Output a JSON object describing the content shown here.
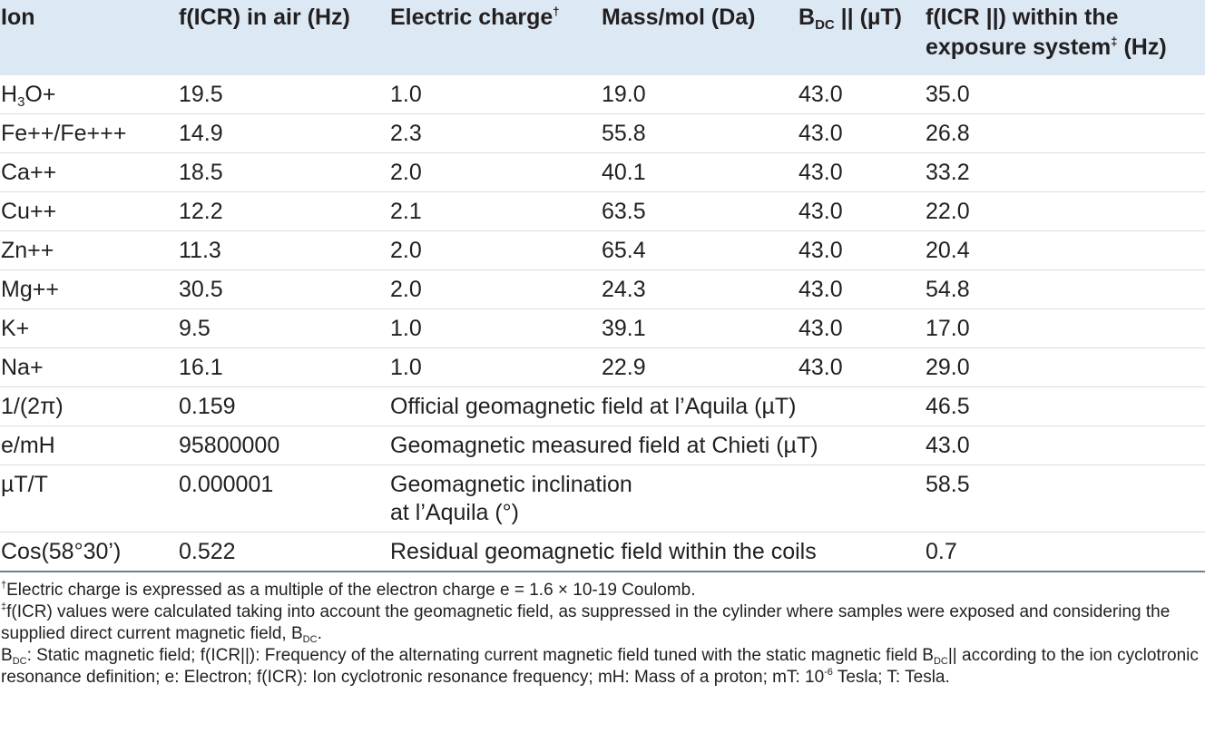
{
  "table": {
    "headers": [
      {
        "key": "ion",
        "text": "Ion"
      },
      {
        "key": "ficr",
        "text": "f(ICR) in air (Hz)"
      },
      {
        "key": "charge",
        "pre": "Electric charge",
        "sup": "†",
        "post": ""
      },
      {
        "key": "mass",
        "text": "Mass/mol (Da)"
      },
      {
        "key": "bdc",
        "pre": "B",
        "sub": "DC",
        "post": " || (µT)"
      },
      {
        "key": "ficr_exp",
        "pre": "f(ICR ||) within the exposure system",
        "sup": "‡",
        "post": " (Hz)"
      }
    ],
    "ion_rows": [
      {
        "ion_pre": "H",
        "ion_sub": "3",
        "ion_post": "O+",
        "ficr": "19.5",
        "charge": "1.0",
        "mass": "19.0",
        "bdc": "43.0",
        "exp": "35.0"
      },
      {
        "ion_pre": "Fe++/Fe+++",
        "ion_sub": "",
        "ion_post": "",
        "ficr": "14.9",
        "charge": "2.3",
        "mass": "55.8",
        "bdc": "43.0",
        "exp": "26.8"
      },
      {
        "ion_pre": "Ca++",
        "ion_sub": "",
        "ion_post": "",
        "ficr": "18.5",
        "charge": "2.0",
        "mass": "40.1",
        "bdc": "43.0",
        "exp": "33.2"
      },
      {
        "ion_pre": "Cu++",
        "ion_sub": "",
        "ion_post": "",
        "ficr": "12.2",
        "charge": "2.1",
        "mass": "63.5",
        "bdc": "43.0",
        "exp": "22.0"
      },
      {
        "ion_pre": "Zn++",
        "ion_sub": "",
        "ion_post": "",
        "ficr": "11.3",
        "charge": "2.0",
        "mass": "65.4",
        "bdc": "43.0",
        "exp": "20.4"
      },
      {
        "ion_pre": "Mg++",
        "ion_sub": "",
        "ion_post": "",
        "ficr": "30.5",
        "charge": "2.0",
        "mass": "24.3",
        "bdc": "43.0",
        "exp": "54.8"
      },
      {
        "ion_pre": "K+",
        "ion_sub": "",
        "ion_post": "",
        "ficr": "9.5",
        "charge": "1.0",
        "mass": "39.1",
        "bdc": "43.0",
        "exp": "17.0"
      },
      {
        "ion_pre": "Na+",
        "ion_sub": "",
        "ion_post": "",
        "ficr": "16.1",
        "charge": "1.0",
        "mass": "22.9",
        "bdc": "43.0",
        "exp": "29.0"
      }
    ],
    "constant_rows": [
      {
        "name": "1/(2π)",
        "value": "0.159",
        "desc": "Official geomagnetic field at l’Aquila (µT)",
        "result": "46.5"
      },
      {
        "name": "e/mH",
        "value": "95800000",
        "desc": "Geomagnetic measured field at Chieti (µT)",
        "result": "43.0"
      },
      {
        "name": "µT/T",
        "value": "0.000001",
        "desc": "Geomagnetic inclination at l’Aquila (°)",
        "result": "58.5"
      },
      {
        "name": "Cos(58°30’)",
        "value": "0.522",
        "desc": "Residual geomagnetic field within the coils",
        "result": "0.7"
      }
    ]
  },
  "footnotes": {
    "dagger": {
      "mark": "†",
      "text": "Electric charge is expressed as a multiple of the electron charge e = 1.6 × 10-19 Coulomb."
    },
    "ddagger": {
      "mark": "‡",
      "text": "f(ICR) values were calculated taking into account the geomagnetic field, as suppressed in the cylinder where samples were exposed and considering the supplied direct current magnetic field, B",
      "sub": "DC",
      "end": "."
    },
    "abbrev": {
      "b": "B",
      "sub1": "DC",
      "part1": ": Static magnetic field; f(ICR||): Frequency of the alternating current magnetic field tuned with the static magnetic field B",
      "sub2": "DC",
      "part2": "|| according to the ion cyclotronic resonance definition; e: Electron; f(ICR): Ion cyclotronic resonance frequency; mH: Mass of a proton; mT: 10",
      "sup": "-6",
      "part3": " Tesla; T: Tesla."
    }
  }
}
